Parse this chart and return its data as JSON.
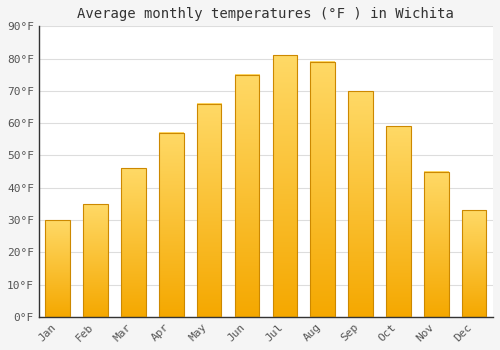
{
  "title": "Average monthly temperatures (°F ) in Wichita",
  "months": [
    "Jan",
    "Feb",
    "Mar",
    "Apr",
    "May",
    "Jun",
    "Jul",
    "Aug",
    "Sep",
    "Oct",
    "Nov",
    "Dec"
  ],
  "values": [
    30,
    35,
    46,
    57,
    66,
    75,
    81,
    79,
    70,
    59,
    45,
    33
  ],
  "bar_color_bottom": "#F5A800",
  "bar_color_top": "#FFD966",
  "bar_edge_color": "#CC8800",
  "background_color": "#f5f5f5",
  "plot_background_color": "#ffffff",
  "ylim": [
    0,
    90
  ],
  "yticks": [
    0,
    10,
    20,
    30,
    40,
    50,
    60,
    70,
    80,
    90
  ],
  "ytick_labels": [
    "0°F",
    "10°F",
    "20°F",
    "30°F",
    "40°F",
    "50°F",
    "60°F",
    "70°F",
    "80°F",
    "90°F"
  ],
  "title_fontsize": 10,
  "tick_fontsize": 8,
  "grid_color": "#dddddd",
  "bar_width": 0.65
}
